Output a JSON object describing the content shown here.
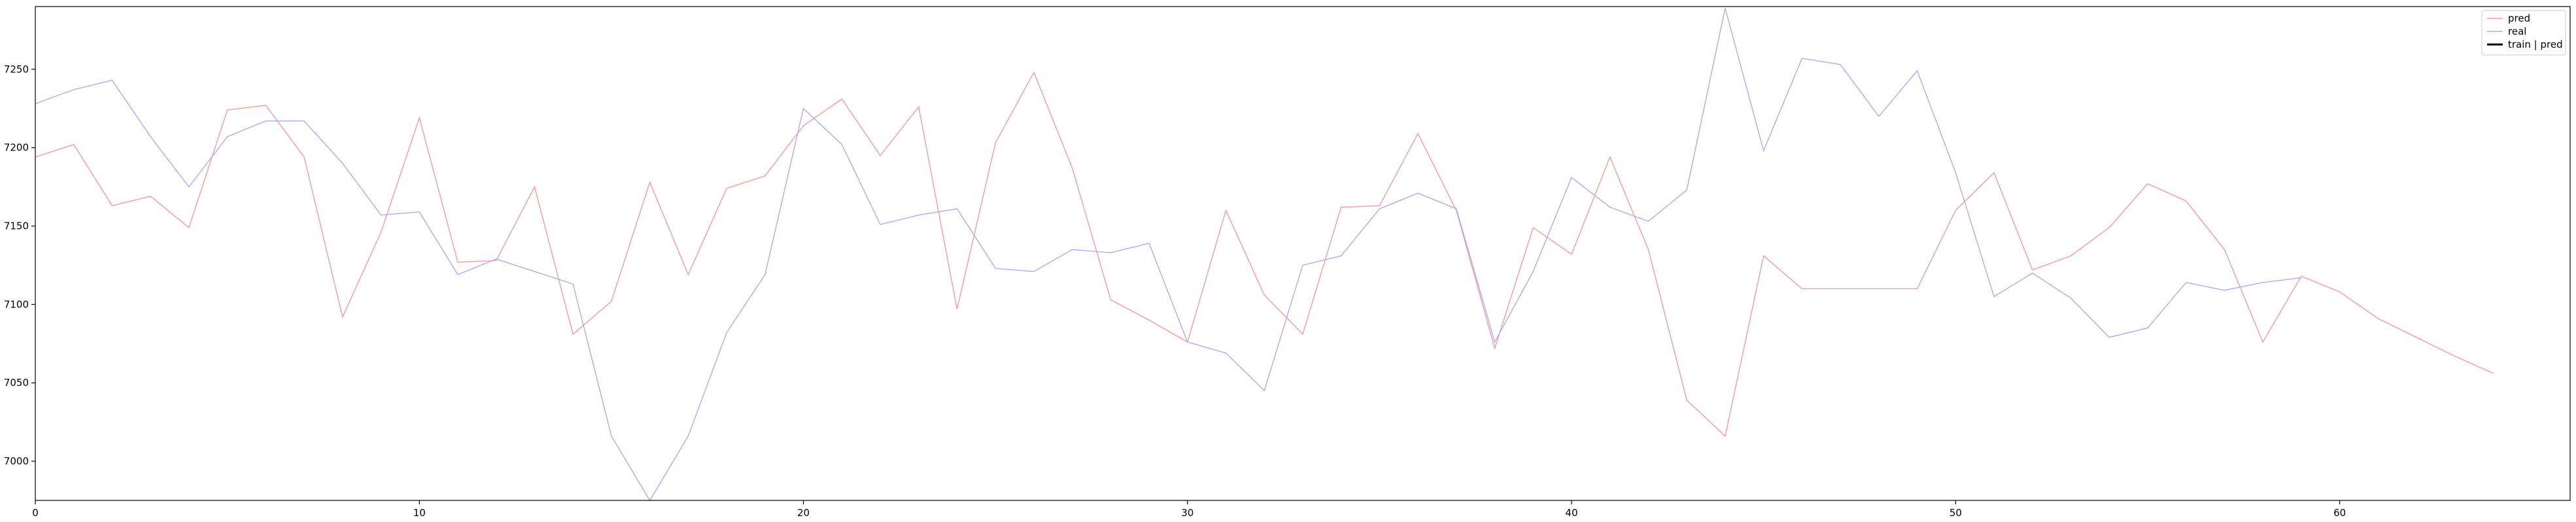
{
  "chart_data": {
    "type": "line",
    "title": "",
    "xlabel": "",
    "ylabel": "",
    "xlim": [
      0,
      66
    ],
    "ylim": [
      6975,
      7290
    ],
    "x_ticks": [
      0,
      10,
      20,
      30,
      40,
      50,
      60
    ],
    "y_ticks": [
      7000,
      7050,
      7100,
      7150,
      7200,
      7250
    ],
    "grid": false,
    "legend_position": "top-right",
    "series": [
      {
        "name": "pred",
        "color": "#ff9999",
        "x": [
          0,
          1,
          2,
          3,
          4,
          5,
          6,
          7,
          8,
          9,
          10,
          11,
          12,
          13,
          14,
          15,
          16,
          17,
          18,
          19,
          20,
          21,
          22,
          23,
          24,
          25,
          26,
          27,
          28,
          29,
          30,
          31,
          32,
          33,
          34,
          35,
          36,
          37,
          38,
          39,
          40,
          41,
          42,
          43,
          44,
          45,
          46,
          47,
          48,
          49,
          50,
          51,
          52,
          53,
          54,
          55,
          56,
          57,
          58,
          59,
          60,
          61,
          62,
          63,
          64
        ],
        "values": [
          7194,
          7202,
          7163,
          7169,
          7149,
          7224,
          7227,
          7194,
          7092,
          7146,
          7219,
          7127,
          7128,
          7175,
          7081,
          7102,
          7178,
          7119,
          7174,
          7182,
          7214,
          7231,
          7195,
          7226,
          7097,
          7203,
          7248,
          7187,
          7103,
          7090,
          7076,
          7160,
          7106,
          7081,
          7162,
          7163,
          7209,
          7160,
          7072,
          7149,
          7132,
          7194,
          7135,
          7039,
          7016,
          7131,
          7110,
          7110,
          7110,
          7110,
          7160,
          7184,
          7122,
          7131,
          7149,
          7177,
          7166,
          7135,
          7076,
          7118,
          7108,
          7091,
          7079,
          7067,
          7056
        ]
      },
      {
        "name": "real",
        "color": "#aaaaff",
        "x": [
          0,
          1,
          2,
          3,
          4,
          5,
          6,
          7,
          8,
          9,
          10,
          11,
          12,
          13,
          14,
          15,
          16,
          17,
          18,
          19,
          20,
          21,
          22,
          23,
          24,
          25,
          26,
          27,
          28,
          29,
          30,
          31,
          32,
          33,
          34,
          35,
          36,
          37,
          38,
          39,
          40,
          41,
          42,
          43,
          44,
          45,
          46,
          47,
          48,
          49,
          50,
          51,
          52,
          53,
          54,
          55,
          56,
          57,
          58,
          59
        ],
        "values": [
          7228,
          7237,
          7243,
          7207,
          7175,
          7207,
          7217,
          7217,
          7190,
          7157,
          7159,
          7119,
          7129,
          7121,
          7113,
          7016,
          6975,
          7016,
          7082,
          7119,
          7225,
          7202,
          7151,
          7157,
          7161,
          7123,
          7121,
          7135,
          7133,
          7139,
          7076,
          7069,
          7045,
          7125,
          7131,
          7161,
          7171,
          7161,
          7076,
          7121,
          7181,
          7162,
          7153,
          7173,
          7289,
          7198,
          7257,
          7253,
          7220,
          7249,
          7184,
          7105,
          7120,
          7104,
          7079,
          7085,
          7114,
          7109,
          7114,
          7117
        ]
      }
    ],
    "legend": [
      {
        "label": "pred",
        "color": "#ff9999",
        "style": "thin"
      },
      {
        "label": "real",
        "color": "#aaaaff",
        "style": "thin"
      },
      {
        "label": "train | pred",
        "color": "#000000",
        "style": "thick"
      }
    ]
  }
}
